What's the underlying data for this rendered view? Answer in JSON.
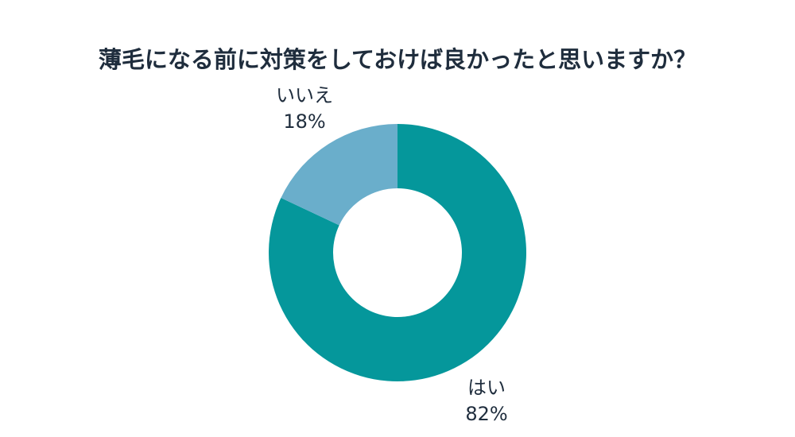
{
  "chart_data": {
    "type": "pie",
    "variant": "donut",
    "title": "薄毛になる前に対策をしておけば良かったと思いますか？",
    "slices": [
      {
        "label": "はい",
        "value": 82,
        "value_label": "82%",
        "color": "#05979b"
      },
      {
        "label": "いいえ",
        "value": 18,
        "value_label": "18%",
        "color": "#6aaecb"
      }
    ]
  }
}
